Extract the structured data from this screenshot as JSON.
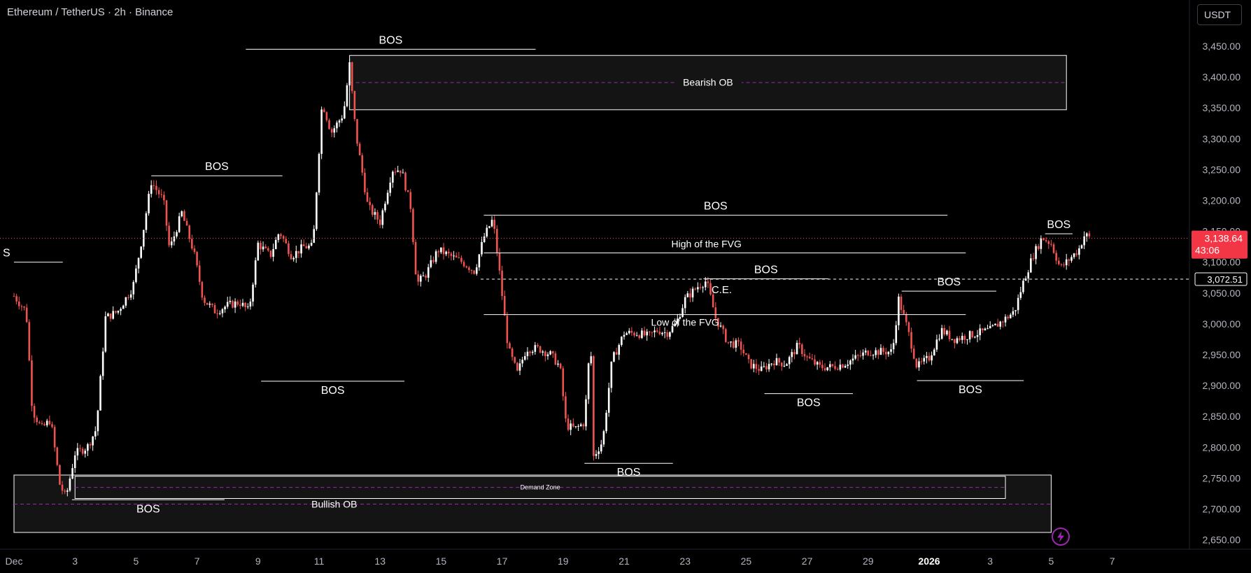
{
  "header": {
    "symbol_title": "Ethereum / TetherUS · 2h · Binance",
    "currency_button": "USDT"
  },
  "colors": {
    "background": "#000000",
    "candle_up": "#ffffff",
    "candle_down": "#ef5350",
    "price_label": "#f23645",
    "ob_fill": "#141414",
    "midline": "#9c27b0"
  },
  "icons": {
    "replay": "lightning-bolt-icon"
  },
  "chart_data": {
    "type": "candlestick",
    "yaxis": {
      "ticks": [
        "3,450.00",
        "3,400.00",
        "3,350.00",
        "3,300.00",
        "3,250.00",
        "3,200.00",
        "3,150.00",
        "3,100.00",
        "3,050.00",
        "3,000.00",
        "2,950.00",
        "2,900.00",
        "2,850.00",
        "2,800.00",
        "2,750.00",
        "2,700.00",
        "2,650.00"
      ],
      "range": [
        2635,
        3485
      ]
    },
    "xaxis": {
      "ticks": [
        "Dec",
        "3",
        "5",
        "7",
        "9",
        "11",
        "13",
        "15",
        "17",
        "19",
        "21",
        "23",
        "25",
        "27",
        "29",
        "2026",
        "3",
        "5",
        "7"
      ],
      "range_days": [
        "Dec 1",
        "Jan 8"
      ]
    },
    "current_price": {
      "value": 3138.64,
      "label": "3,138.64",
      "countdown": "43:06"
    },
    "ce_level": {
      "value": 3072.51,
      "label": "3,072.51",
      "text": "C.E."
    },
    "fvg": {
      "high": 3115,
      "low": 3015,
      "high_label": "High of the FVG",
      "low_label": "Low of the FVG"
    },
    "zones": [
      {
        "label": "Bearish OB",
        "top": 3435,
        "bottom": 3347,
        "mid": 3391,
        "from_day": 11.0,
        "to_day": 34.5
      },
      {
        "label": "Bullish OB",
        "top": 2755,
        "bottom": 2662,
        "mid": 2708,
        "from_day": 0.0,
        "to_day": 34.0
      },
      {
        "label": "Demand Zone",
        "top": 2753,
        "bottom": 2717,
        "mid": 2735,
        "from_day": 2.0,
        "to_day": 32.5
      }
    ],
    "bos": [
      {
        "label": "BOS",
        "price": 3445,
        "from_day": 7.6,
        "to_day": 17.1
      },
      {
        "label": "BOS",
        "price": 3240,
        "from_day": 4.5,
        "to_day": 8.8
      },
      {
        "label": "BOS",
        "price": 2907,
        "from_day": 8.1,
        "to_day": 12.8
      },
      {
        "label": "BOS",
        "price": 3176,
        "from_day": 15.4,
        "to_day": 30.6
      },
      {
        "label": "BOS",
        "price": 3073,
        "from_day": 22.6,
        "to_day": 26.7
      },
      {
        "label": "BOS",
        "price": 2887,
        "from_day": 24.6,
        "to_day": 27.5
      },
      {
        "label": "BOS",
        "price": 3053,
        "from_day": 29.1,
        "to_day": 32.2
      },
      {
        "label": "BOS",
        "price": 2908,
        "from_day": 29.6,
        "to_day": 33.1
      },
      {
        "label": "BOS",
        "price": 2774,
        "from_day": 18.7,
        "to_day": 21.6
      },
      {
        "label": "BOS",
        "price": 2715,
        "from_day": 1.9,
        "to_day": 6.9
      },
      {
        "label": "BOS",
        "price": 3146,
        "from_day": 33.8,
        "to_day": 34.7
      },
      {
        "label": "S",
        "price": 3100,
        "from_day": 0.0,
        "to_day": 1.6
      }
    ],
    "price_path": [
      [
        0.0,
        3045
      ],
      [
        0.4,
        3020
      ],
      [
        0.6,
        2860
      ],
      [
        0.9,
        2830
      ],
      [
        1.2,
        2845
      ],
      [
        1.5,
        2740
      ],
      [
        1.7,
        2718
      ],
      [
        2.0,
        2790
      ],
      [
        2.4,
        2800
      ],
      [
        2.7,
        2830
      ],
      [
        3.0,
        3010
      ],
      [
        3.4,
        3020
      ],
      [
        3.9,
        3060
      ],
      [
        4.2,
        3140
      ],
      [
        4.5,
        3230
      ],
      [
        4.9,
        3200
      ],
      [
        5.1,
        3120
      ],
      [
        5.5,
        3180
      ],
      [
        5.9,
        3115
      ],
      [
        6.2,
        3040
      ],
      [
        6.6,
        3020
      ],
      [
        7.0,
        3030
      ],
      [
        7.4,
        3035
      ],
      [
        7.7,
        3020
      ],
      [
        8.0,
        3130
      ],
      [
        8.4,
        3110
      ],
      [
        8.7,
        3150
      ],
      [
        9.1,
        3110
      ],
      [
        9.5,
        3125
      ],
      [
        9.8,
        3125
      ],
      [
        10.1,
        3360
      ],
      [
        10.4,
        3310
      ],
      [
        10.8,
        3340
      ],
      [
        11.0,
        3420
      ],
      [
        11.2,
        3310
      ],
      [
        11.6,
        3190
      ],
      [
        12.0,
        3165
      ],
      [
        12.4,
        3250
      ],
      [
        12.7,
        3250
      ],
      [
        13.0,
        3190
      ],
      [
        13.2,
        3065
      ],
      [
        13.5,
        3080
      ],
      [
        13.9,
        3120
      ],
      [
        14.3,
        3110
      ],
      [
        14.7,
        3100
      ],
      [
        15.1,
        3085
      ],
      [
        15.4,
        3140
      ],
      [
        15.7,
        3170
      ],
      [
        15.9,
        3090
      ],
      [
        16.2,
        2960
      ],
      [
        16.5,
        2920
      ],
      [
        16.8,
        2960
      ],
      [
        17.2,
        2960
      ],
      [
        17.6,
        2950
      ],
      [
        17.9,
        2930
      ],
      [
        18.1,
        2835
      ],
      [
        18.4,
        2830
      ],
      [
        18.7,
        2840
      ],
      [
        18.9,
        2980
      ],
      [
        19.0,
        2785
      ],
      [
        19.3,
        2810
      ],
      [
        19.6,
        2940
      ],
      [
        20.0,
        2985
      ],
      [
        20.4,
        2985
      ],
      [
        20.8,
        2980
      ],
      [
        21.1,
        2990
      ],
      [
        21.4,
        2985
      ],
      [
        21.7,
        3000
      ],
      [
        22.0,
        3040
      ],
      [
        22.4,
        3060
      ],
      [
        22.7,
        3070
      ],
      [
        23.0,
        3010
      ],
      [
        23.4,
        2970
      ],
      [
        23.8,
        2965
      ],
      [
        24.1,
        2935
      ],
      [
        24.5,
        2925
      ],
      [
        24.9,
        2940
      ],
      [
        25.3,
        2935
      ],
      [
        25.7,
        2965
      ],
      [
        26.0,
        2945
      ],
      [
        26.4,
        2930
      ],
      [
        26.8,
        2930
      ],
      [
        27.2,
        2935
      ],
      [
        27.6,
        2945
      ],
      [
        28.0,
        2955
      ],
      [
        28.4,
        2955
      ],
      [
        28.8,
        2955
      ],
      [
        29.0,
        3040
      ],
      [
        29.3,
        2990
      ],
      [
        29.6,
        2930
      ],
      [
        30.0,
        2945
      ],
      [
        30.4,
        2990
      ],
      [
        30.8,
        2975
      ],
      [
        31.2,
        2980
      ],
      [
        31.6,
        2985
      ],
      [
        32.0,
        2990
      ],
      [
        32.4,
        3005
      ],
      [
        32.8,
        3020
      ],
      [
        33.1,
        3070
      ],
      [
        33.4,
        3110
      ],
      [
        33.7,
        3140
      ],
      [
        34.0,
        3130
      ],
      [
        34.3,
        3090
      ],
      [
        34.6,
        3105
      ],
      [
        34.9,
        3120
      ],
      [
        35.1,
        3145
      ],
      [
        35.3,
        3138
      ]
    ]
  }
}
